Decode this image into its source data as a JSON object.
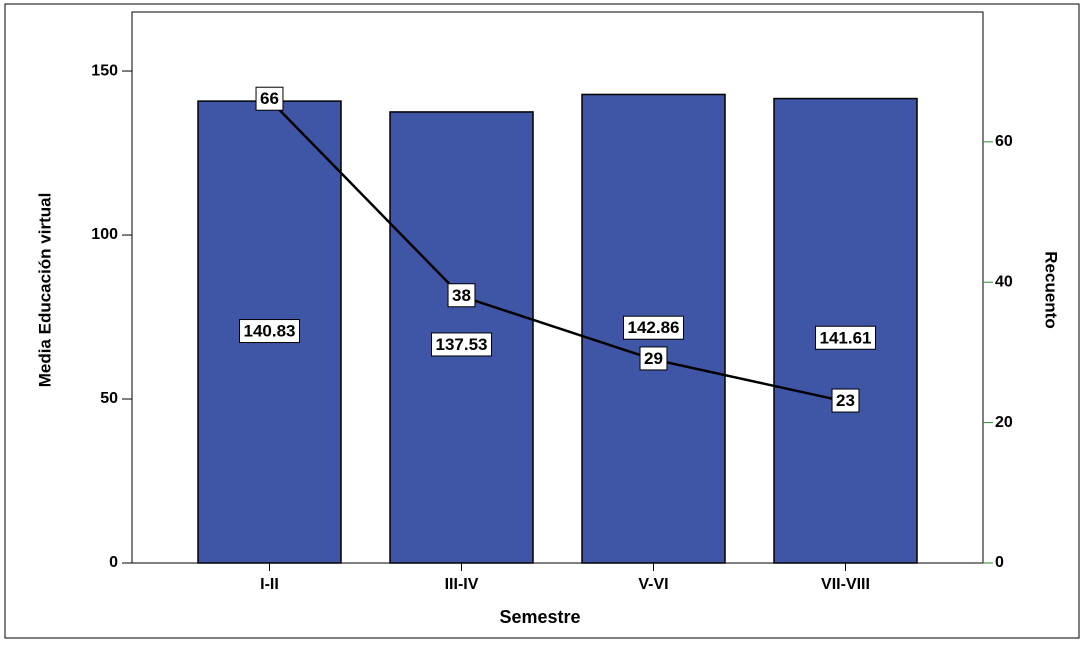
{
  "chart_data": {
    "type": "bar",
    "x_label": "Semestre",
    "y_label": "Media Educación virtual",
    "y2_label": "Recuento",
    "categories": [
      "I-II",
      "III-IV",
      "V-VI",
      "VII-VIII"
    ],
    "series": [
      {
        "type": "bar",
        "color": "#3f55a5",
        "values": [
          140.83,
          137.53,
          142.86,
          141.61
        ]
      },
      {
        "type": "line",
        "axis": "y2",
        "color": "#000000",
        "values": [
          66,
          38,
          29,
          23
        ]
      }
    ],
    "ylim": [
      0,
      168
    ],
    "yticks": [
      0,
      50,
      100,
      150
    ],
    "y2lim": [
      0,
      78.5
    ],
    "y2ticks": [
      0,
      20,
      40,
      60
    ]
  }
}
